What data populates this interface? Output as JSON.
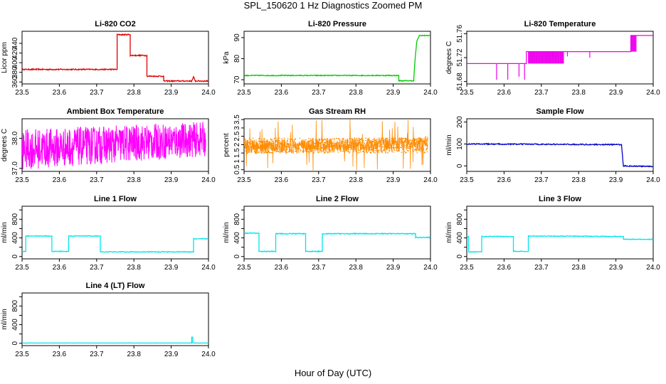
{
  "figure": {
    "title": "SPL_150620  1 Hz Diagnostics Zoomed PM",
    "xlabel": "Hour of Day (UTC)"
  },
  "chart_data": [
    {
      "type": "line",
      "title": "Li-820 CO2",
      "ylabel": "Licor ppm",
      "xlim": [
        23.5,
        24.0
      ],
      "ylim": [
        356,
        465
      ],
      "xticks": [
        "23.5",
        "23.6",
        "23.7",
        "23.8",
        "23.9",
        "24.0"
      ],
      "yticks": [
        360,
        380,
        400,
        420,
        440
      ],
      "color": "#dd0000",
      "series": [
        {
          "x": [
            23.5,
            23.755,
            23.755,
            23.79,
            23.79,
            23.835,
            23.835,
            23.88,
            23.88,
            23.955,
            23.96,
            23.965,
            24.0
          ],
          "y": [
            386,
            386,
            458,
            458,
            415,
            415,
            372,
            372,
            362,
            362,
            370,
            362,
            362
          ]
        }
      ],
      "noise": 1.2
    },
    {
      "type": "line",
      "title": "Li-820 Pressure",
      "ylabel": "kPa",
      "xlim": [
        23.5,
        24.0
      ],
      "ylim": [
        68,
        93
      ],
      "xticks": [
        "23.5",
        "23.6",
        "23.7",
        "23.8",
        "23.9",
        "24.0"
      ],
      "yticks": [
        70,
        80,
        90
      ],
      "color": "#00cc00",
      "series": [
        {
          "x": [
            23.5,
            23.915,
            23.915,
            23.955,
            23.958,
            23.963,
            23.97,
            24.0
          ],
          "y": [
            72,
            72,
            69.5,
            69.5,
            78,
            88,
            91,
            91
          ]
        }
      ],
      "noise": 0.2
    },
    {
      "type": "line",
      "title": "Li-820 Temperature",
      "ylabel": "degrees C",
      "xlim": [
        23.5,
        24.0
      ],
      "ylim": [
        51.676,
        51.764
      ],
      "xticks": [
        "23.5",
        "23.6",
        "23.7",
        "23.8",
        "23.9",
        "24.0"
      ],
      "yticks": [
        51.68,
        51.72,
        51.76
      ],
      "ytick_labels": [
        "51.68",
        "51.72",
        "51.76"
      ],
      "color": "#ee00ee",
      "series": [
        {
          "x": [
            23.5,
            23.66,
            23.66,
            23.94,
            23.94,
            24.0
          ],
          "y": [
            51.71,
            51.71,
            51.73,
            51.73,
            51.757,
            51.757
          ]
        }
      ],
      "dips": [
        [
          23.58,
          51.683
        ],
        [
          23.61,
          51.683
        ],
        [
          23.64,
          51.688
        ],
        [
          23.655,
          51.683
        ],
        [
          23.7,
          51.72
        ],
        [
          23.73,
          51.72
        ],
        [
          23.77,
          51.722
        ],
        [
          23.83,
          51.72
        ]
      ],
      "band": [
        23.665,
        23.76,
        51.71,
        51.73
      ],
      "band2": [
        23.94,
        23.955,
        51.73,
        51.757
      ]
    },
    {
      "type": "line",
      "title": "Ambient Box Temperature",
      "ylabel": "degrees C",
      "xlim": [
        23.5,
        24.0
      ],
      "ylim": [
        36.9,
        38.65
      ],
      "xticks": [
        "23.5",
        "23.6",
        "23.7",
        "23.8",
        "23.9",
        "24.0"
      ],
      "yticks": [
        37.0,
        38.0
      ],
      "ytick_labels": [
        "37.0",
        "38.0"
      ],
      "color": "#ff00ff",
      "dense_band": {
        "lo": [
          36.95,
          37.4
        ],
        "hi": [
          38.3,
          38.55
        ]
      }
    },
    {
      "type": "scatter",
      "title": "Gas Stream RH",
      "ylabel": "percent",
      "xlim": [
        23.5,
        24.0
      ],
      "ylim": [
        0.4,
        3.55
      ],
      "xticks": [
        "23.5",
        "23.6",
        "23.7",
        "23.8",
        "23.9",
        "24.0"
      ],
      "yticks": [
        0.5,
        1.0,
        1.5,
        2.0,
        2.5,
        3.0,
        3.5
      ],
      "ytick_labels": [
        "0.5",
        "1",
        "1.5",
        "2",
        "2.5",
        "3",
        "3.5"
      ],
      "color": "#ff8c00",
      "dense_band": {
        "lo": [
          1.4,
          1.6
        ],
        "hi": [
          2.3,
          2.5
        ]
      }
    },
    {
      "type": "line",
      "title": "Sample Flow",
      "ylabel": "ml/min",
      "xlim": [
        23.5,
        24.0
      ],
      "ylim": [
        -25,
        215
      ],
      "xticks": [
        "23.5",
        "23.6",
        "23.7",
        "23.8",
        "23.9",
        "24.0"
      ],
      "yticks": [
        0,
        100,
        200
      ],
      "color": "#0000cc",
      "series": [
        {
          "x": [
            23.5,
            23.915,
            23.92,
            24.0
          ],
          "y": [
            100,
            97,
            0,
            -3
          ]
        }
      ],
      "noise": 2.5
    },
    {
      "type": "line",
      "title": "Line 1 Flow",
      "ylabel": "ml/min",
      "xlim": [
        23.5,
        24.0
      ],
      "ylim": [
        -50,
        1080
      ],
      "xticks": [
        "23.5",
        "23.6",
        "23.7",
        "23.8",
        "23.9",
        "24.0"
      ],
      "yticks": [
        0,
        200,
        400,
        600,
        800,
        1000
      ],
      "ytick_labels": [
        "0",
        "400",
        "800"
      ],
      "color": "#00e5ee",
      "series": [
        {
          "x": [
            23.5,
            23.51,
            23.51,
            23.58,
            23.58,
            23.625,
            23.625,
            23.71,
            23.71,
            23.96,
            23.96,
            24.0
          ],
          "y": [
            110,
            110,
            440,
            440,
            110,
            110,
            440,
            440,
            100,
            100,
            380,
            380
          ]
        }
      ],
      "noise": 8
    },
    {
      "type": "line",
      "title": "Line 2 Flow",
      "ylabel": "ml/min",
      "xlim": [
        23.5,
        24.0
      ],
      "ylim": [
        -50,
        1080
      ],
      "xticks": [
        "23.5",
        "23.6",
        "23.7",
        "23.8",
        "23.9",
        "24.0"
      ],
      "yticks": [
        0,
        200,
        400,
        600,
        800,
        1000
      ],
      "ytick_labels": [
        "0",
        "400",
        "800"
      ],
      "color": "#00e5ee",
      "series": [
        {
          "x": [
            23.5,
            23.54,
            23.54,
            23.585,
            23.585,
            23.665,
            23.665,
            23.71,
            23.71,
            23.96,
            23.96,
            24.0
          ],
          "y": [
            500,
            500,
            110,
            110,
            490,
            490,
            110,
            110,
            490,
            490,
            410,
            410
          ]
        }
      ],
      "noise": 10
    },
    {
      "type": "line",
      "title": "Line 3 Flow",
      "ylabel": "ml/min",
      "xlim": [
        23.5,
        24.0
      ],
      "ylim": [
        -50,
        1080
      ],
      "xticks": [
        "23.5",
        "23.6",
        "23.7",
        "23.8",
        "23.9",
        "24.0"
      ],
      "yticks": [
        0,
        200,
        400,
        600,
        800,
        1000
      ],
      "ytick_labels": [
        "0",
        "400",
        "800"
      ],
      "color": "#00e5ee",
      "series": [
        {
          "x": [
            23.5,
            23.505,
            23.505,
            23.54,
            23.54,
            23.625,
            23.625,
            23.665,
            23.665,
            23.92,
            23.92,
            24.0
          ],
          "y": [
            430,
            430,
            100,
            100,
            430,
            430,
            110,
            110,
            440,
            430,
            370,
            370
          ]
        }
      ],
      "noise": 8
    },
    {
      "type": "line",
      "title": "Line 4 (LT) Flow",
      "ylabel": "ml/min",
      "xlim": [
        23.5,
        24.0
      ],
      "ylim": [
        -50,
        1080
      ],
      "xticks": [
        "23.5",
        "23.6",
        "23.7",
        "23.8",
        "23.9",
        "24.0"
      ],
      "yticks": [
        0,
        200,
        400,
        600,
        800,
        1000
      ],
      "ytick_labels": [
        "0",
        "400",
        "800"
      ],
      "color": "#00e5ee",
      "series": [
        {
          "x": [
            23.5,
            23.955,
            23.955,
            23.958,
            23.958,
            24.0
          ],
          "y": [
            5,
            5,
            130,
            130,
            5,
            5
          ]
        }
      ],
      "noise": 2
    }
  ]
}
